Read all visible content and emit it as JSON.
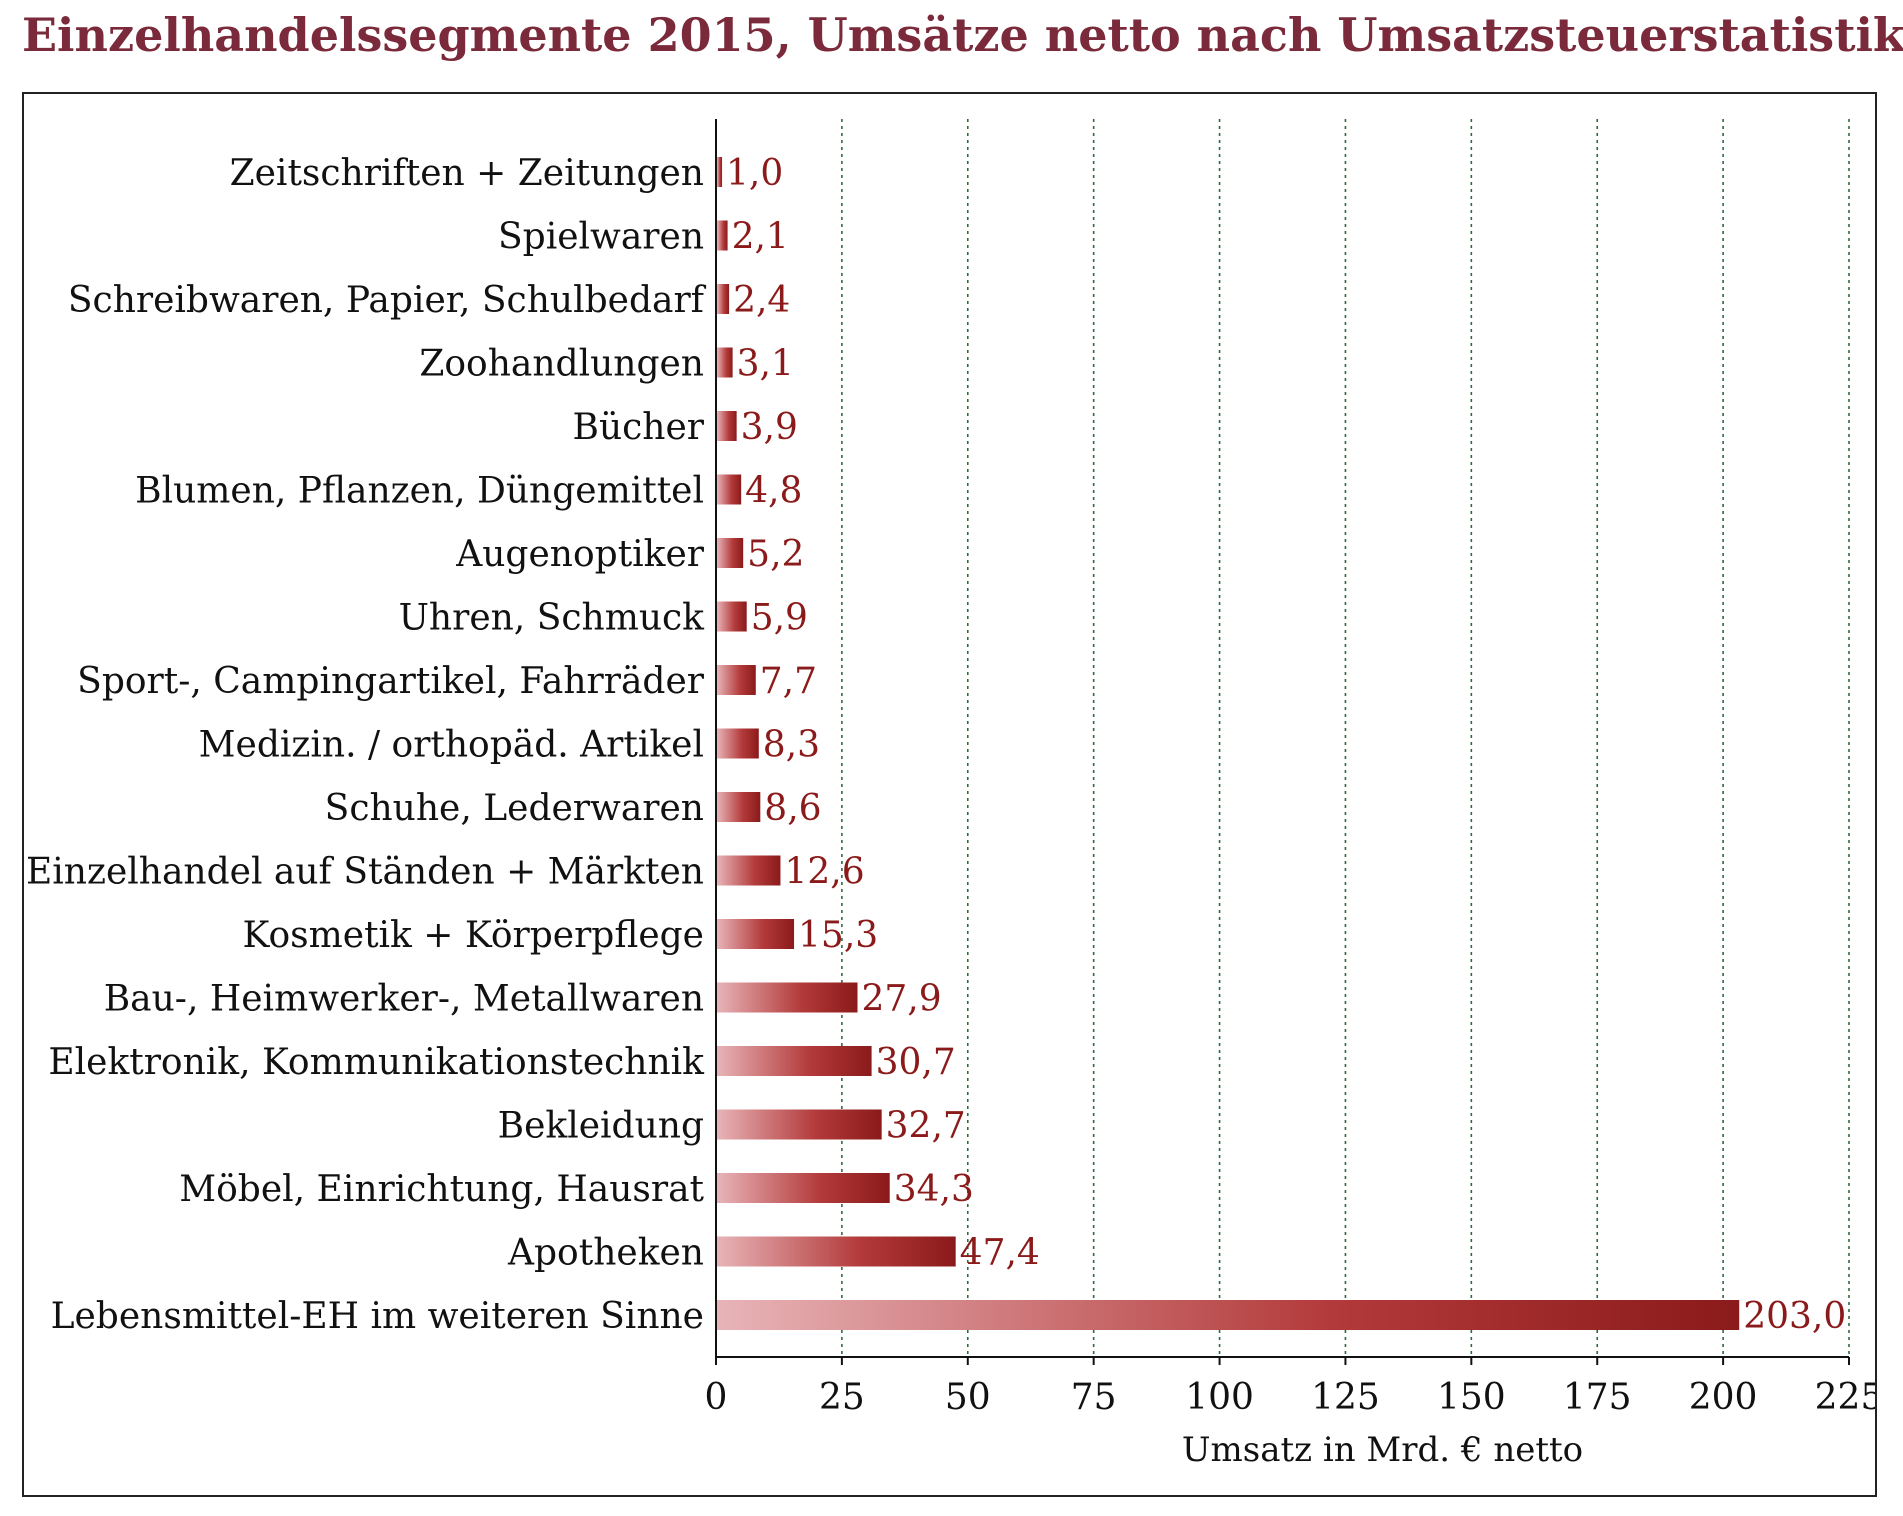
{
  "chart_data": {
    "type": "bar",
    "orientation": "horizontal",
    "title": "Einzelhandelssegmente 2015, Umsätze netto nach Umsatzsteuerstatistik",
    "xlabel": "Umsatz in Mrd. € netto",
    "ylabel": "",
    "xlim": [
      0,
      225
    ],
    "xticks": [
      "0",
      "25",
      "50",
      "75",
      "100",
      "125",
      "150",
      "175",
      "200",
      "225"
    ],
    "grid": "vertical dotted",
    "legend": "none",
    "categories": [
      "Zeitschriften + Zeitungen",
      "Spielwaren",
      "Schreibwaren, Papier, Schulbedarf",
      "Zoohandlungen",
      "Bücher",
      "Blumen, Pflanzen, Düngemittel",
      "Augenoptiker",
      "Uhren, Schmuck",
      "Sport-, Campingartikel, Fahrräder",
      "Medizin. / orthopäd. Artikel",
      "Schuhe, Lederwaren",
      "Einzelhandel auf Ständen + Märkten",
      "Kosmetik + Körperpflege",
      "Bau-, Heimwerker-, Metallwaren",
      "Elektronik, Kommunikationstechnik",
      "Bekleidung",
      "Möbel, Einrichtung, Hausrat",
      "Apotheken",
      "Lebensmittel-EH im weiteren Sinne"
    ],
    "values": [
      1.0,
      2.1,
      2.4,
      3.1,
      3.9,
      4.8,
      5.2,
      5.9,
      7.7,
      8.3,
      8.6,
      12.6,
      15.3,
      27.9,
      30.7,
      32.7,
      34.3,
      47.4,
      203.0
    ],
    "value_labels": [
      "1,0",
      "2,1",
      "2,4",
      "3,1",
      "3,9",
      "4,8",
      "5,2",
      "5,9",
      "7,7",
      "8,3",
      "8,6",
      "12,6",
      "15,3",
      "27,9",
      "30,7",
      "32,7",
      "34,3",
      "47,4",
      "203,0"
    ],
    "colors": {
      "title": "#7a2a3a",
      "bar_dark": "#8b1a1a",
      "bar_light": "#e8b4b8",
      "value_text": "#8b1a1a",
      "grid": "#2e6b3a"
    }
  }
}
